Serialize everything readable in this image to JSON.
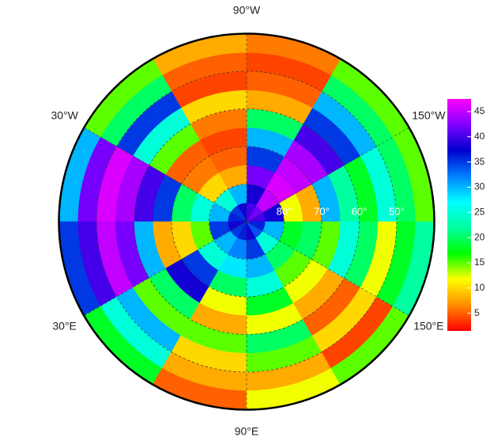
{
  "chart_data": {
    "type": "polar-raster",
    "lon_edges": [
      -180,
      -150,
      -120,
      -90,
      -60,
      -30,
      0,
      30,
      60,
      90,
      120,
      150,
      180
    ],
    "lat_edges": [
      90,
      85,
      80,
      75,
      70,
      65,
      60,
      55,
      50,
      45,
      40
    ],
    "values": [
      [
        40,
        38,
        12,
        8,
        30,
        22,
        18,
        25,
        20,
        15
      ],
      [
        42,
        45,
        46,
        45,
        44,
        40,
        35,
        30,
        20,
        15
      ],
      [
        40,
        38,
        42,
        35,
        30,
        20,
        8,
        5,
        4,
        6
      ],
      [
        38,
        30,
        8,
        5,
        4,
        6,
        10,
        4,
        5,
        8
      ],
      [
        35,
        25,
        10,
        6,
        5,
        15,
        25,
        35,
        20,
        15
      ],
      [
        36,
        30,
        25,
        20,
        35,
        40,
        44,
        46,
        42,
        30
      ],
      [
        38,
        35,
        15,
        10,
        8,
        30,
        42,
        45,
        40,
        35
      ],
      [
        35,
        30,
        25,
        35,
        38,
        20,
        15,
        30,
        25,
        18
      ],
      [
        36,
        32,
        28,
        20,
        12,
        8,
        15,
        10,
        8,
        5
      ],
      [
        38,
        35,
        30,
        25,
        18,
        12,
        20,
        15,
        8,
        12
      ],
      [
        34,
        25,
        20,
        15,
        12,
        8,
        5,
        10,
        4,
        15
      ],
      [
        36,
        30,
        18,
        20,
        15,
        25,
        20,
        12,
        18,
        22
      ]
    ],
    "lon_labels": [
      {
        "value": -90,
        "label": "90°W"
      },
      {
        "value": -30,
        "label": "30°W"
      },
      {
        "value": -150,
        "label": "150°W"
      },
      {
        "value": 30,
        "label": "30°E"
      },
      {
        "value": 150,
        "label": "150°E"
      },
      {
        "value": 90,
        "label": "90°E"
      }
    ],
    "lat_labels": [
      {
        "value": 80,
        "label": "80°"
      },
      {
        "value": 70,
        "label": "70°"
      },
      {
        "value": 60,
        "label": "60°"
      },
      {
        "value": 50,
        "label": "50°"
      }
    ],
    "zlim": [
      1.5,
      47.5
    ],
    "zticks": [
      5,
      10,
      15,
      20,
      25,
      30,
      35,
      40,
      45
    ],
    "colorscale": [
      "#ff0000",
      "#ff8c00",
      "#ffff00",
      "#00ff00",
      "#00ffa0",
      "#00ffff",
      "#0080ff",
      "#0000cd",
      "#8000ff",
      "#ff00ff"
    ]
  }
}
